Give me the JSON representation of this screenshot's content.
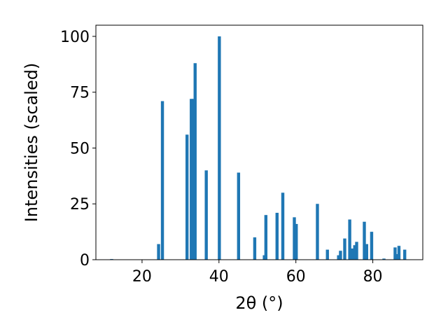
{
  "chart_data": {
    "type": "bar",
    "title": "",
    "xlabel": "2θ (°)",
    "ylabel": "Intensities (scaled)",
    "xlim": [
      8,
      93
    ],
    "ylim": [
      0,
      105
    ],
    "xticks": [
      20,
      40,
      60,
      80
    ],
    "yticks": [
      0,
      25,
      50,
      75,
      100
    ],
    "grid": false,
    "bar_width": 0.8,
    "bar_color": "#1f77b4",
    "x": [
      12.1,
      24.3,
      25.3,
      31.7,
      32.8,
      33.3,
      33.8,
      36.7,
      40.1,
      45.1,
      49.3,
      51.8,
      52.2,
      55.1,
      56.6,
      59.6,
      60.1,
      65.6,
      68.2,
      71.1,
      71.6,
      72.7,
      74.0,
      74.6,
      75.3,
      75.8,
      77.8,
      78.4,
      79.7,
      82.9,
      85.8,
      86.3,
      86.8,
      88.3
    ],
    "values": [
      0.3,
      7,
      71,
      56,
      72,
      72,
      88,
      40,
      100,
      39,
      10,
      2,
      20,
      21,
      30,
      19,
      16,
      25,
      4.5,
      2,
      4,
      9.5,
      18,
      5,
      6.5,
      8,
      17,
      7,
      12.5,
      0.5,
      5.5,
      2.5,
      6.2,
      4.5
    ]
  }
}
